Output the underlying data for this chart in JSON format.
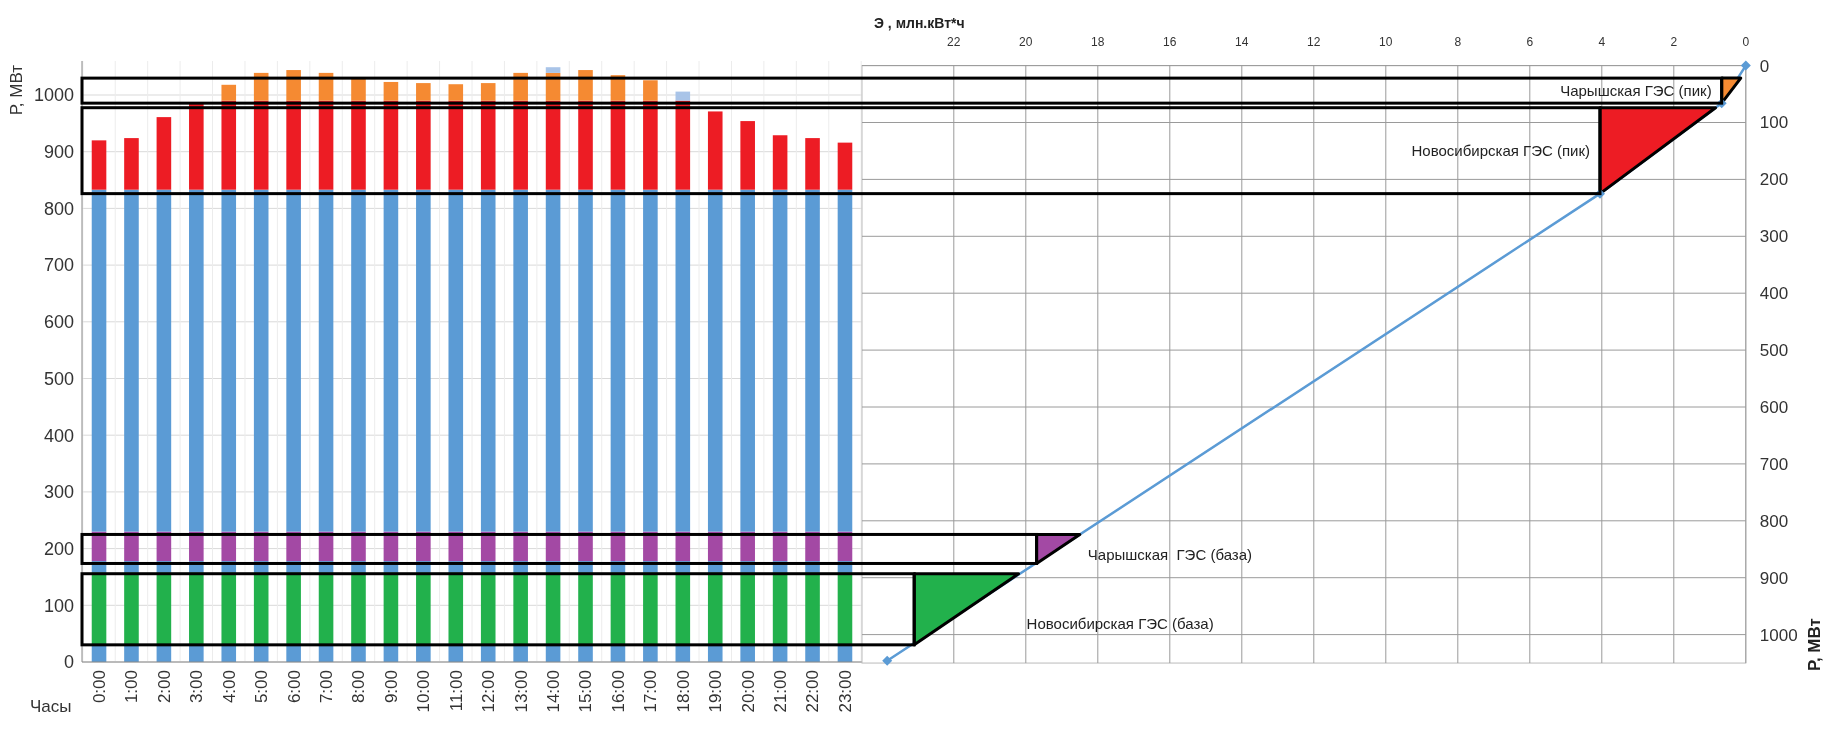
{
  "chart_data": [
    {
      "type": "bar",
      "stacked": true,
      "xlabel": "Часы",
      "ylabel": "Р, МВт",
      "categories": [
        "0:00",
        "1:00",
        "2:00",
        "3:00",
        "4:00",
        "5:00",
        "6:00",
        "7:00",
        "8:00",
        "9:00",
        "10:00",
        "11:00",
        "12:00",
        "13:00",
        "14:00",
        "15:00",
        "16:00",
        "17:00",
        "18:00",
        "19:00",
        "20:00",
        "21:00",
        "22:00",
        "23:00"
      ],
      "series": [
        {
          "color": "#5b9bd5",
          "values": [
            30,
            30,
            30,
            30,
            30,
            30,
            30,
            30,
            30,
            30,
            30,
            30,
            30,
            30,
            30,
            30,
            30,
            30,
            30,
            30,
            30,
            30,
            30,
            30
          ]
        },
        {
          "color": "#22b14c",
          "values": [
            128,
            128,
            128,
            128,
            128,
            128,
            128,
            128,
            128,
            128,
            128,
            128,
            128,
            128,
            128,
            128,
            128,
            128,
            128,
            128,
            128,
            128,
            128,
            128
          ]
        },
        {
          "color": "#5b9bd5",
          "values": [
            20,
            20,
            20,
            20,
            20,
            20,
            20,
            20,
            20,
            20,
            20,
            20,
            20,
            20,
            20,
            20,
            20,
            20,
            20,
            20,
            20,
            20,
            20,
            20
          ]
        },
        {
          "color": "#a349a4",
          "values": [
            52,
            52,
            52,
            52,
            52,
            52,
            52,
            52,
            52,
            52,
            52,
            52,
            52,
            52,
            52,
            52,
            52,
            52,
            52,
            52,
            52,
            52,
            52,
            52
          ]
        },
        {
          "color": "#5b9bd5",
          "values": [
            603,
            603,
            603,
            603,
            603,
            603,
            603,
            603,
            603,
            603,
            603,
            603,
            603,
            603,
            603,
            603,
            603,
            603,
            603,
            603,
            603,
            603,
            603,
            603
          ]
        },
        {
          "color": "#ed1c24",
          "values": [
            87,
            91,
            128,
            152,
            157,
            157,
            157,
            157,
            157,
            157,
            157,
            157,
            157,
            157,
            157,
            157,
            157,
            157,
            157,
            138,
            121,
            96,
            91,
            83
          ]
        },
        {
          "color": "#f58a32",
          "values": [
            null,
            null,
            null,
            null,
            28,
            49,
            54,
            49,
            40,
            33,
            31,
            29,
            31,
            49,
            49,
            54,
            45,
            36,
            null,
            null,
            null,
            null,
            null,
            null
          ]
        },
        {
          "color": "#a9c4e8",
          "values": [
            null,
            null,
            null,
            null,
            null,
            null,
            null,
            null,
            null,
            null,
            null,
            null,
            null,
            null,
            10,
            null,
            null,
            null,
            16,
            null,
            null,
            null,
            null,
            null
          ]
        }
      ],
      "ylim": [
        0,
        1060
      ],
      "yticks": [
        0,
        100,
        200,
        300,
        400,
        500,
        600,
        700,
        800,
        900,
        1000
      ],
      "grid": true
    },
    {
      "type": "line",
      "xlabel": "Э , млн.кВт*ч",
      "ylabel": "Р, МВт",
      "xlim": [
        24.55,
        0
      ],
      "xticks": [
        0,
        2,
        4,
        6,
        8,
        10,
        12,
        14,
        16,
        18,
        20,
        22
      ],
      "ylim": [
        1050,
        0
      ],
      "yticks": [
        0,
        100,
        200,
        300,
        400,
        500,
        600,
        700,
        800,
        900,
        1000
      ],
      "grid": true,
      "series": [
        {
          "color": "#5b9bd5",
          "marker": "diamond",
          "x": [
            0,
            0.67,
            4.05,
            23.85
          ],
          "values": [
            0,
            66,
            225,
            1046
          ]
        },
        {
          "type": "area",
          "name": "Чарышская ГЭС (пик)",
          "color": "#f58a32",
          "x": [
            0.67,
            0.14,
            0.67
          ],
          "values": [
            22,
            22,
            66
          ]
        },
        {
          "type": "area",
          "name": "Новосибирская ГЭС (пик)",
          "color": "#ed1c24",
          "x": [
            4.05,
            0.84,
            4.05
          ],
          "values": [
            74,
            74,
            225
          ]
        },
        {
          "type": "area",
          "name": "Чарышская  ГЭС (база)",
          "color": "#a349a4",
          "x": [
            19.7,
            18.5,
            19.7
          ],
          "values": [
            824,
            824,
            875
          ]
        },
        {
          "type": "area",
          "name": "Новосибирская ГЭС (база)",
          "color": "#22b14c",
          "x": [
            23.1,
            20.2,
            23.1
          ],
          "values": [
            893,
            893,
            1018
          ]
        }
      ]
    }
  ]
}
